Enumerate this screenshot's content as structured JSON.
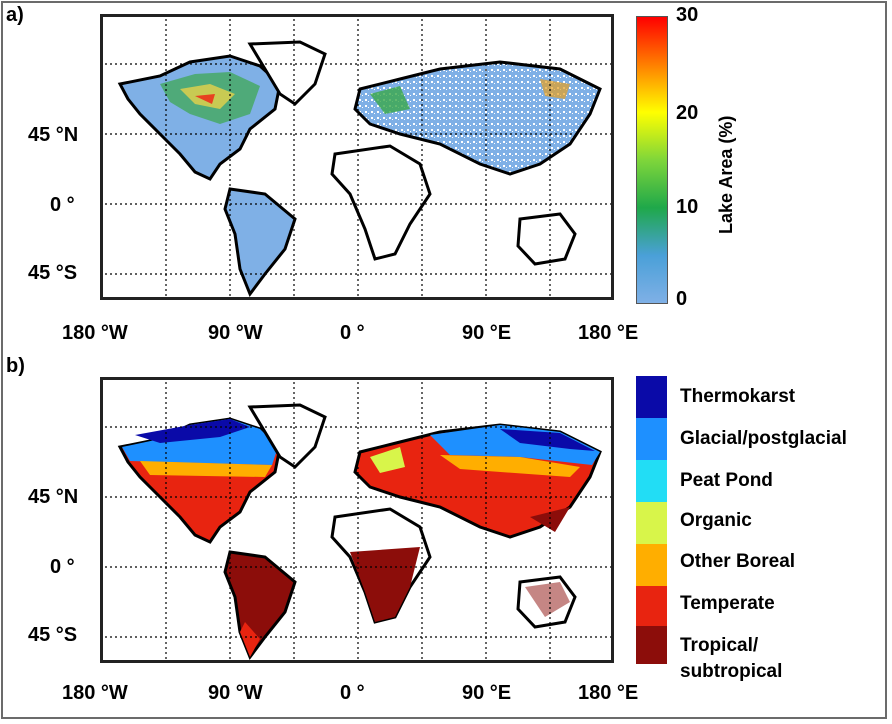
{
  "panels": [
    {
      "label": "a)",
      "lat_ticks": [
        "45 °N",
        "0 °",
        "45 °S"
      ],
      "lon_ticks": [
        "180 °W",
        "90 °W",
        "0 °",
        "90 °E",
        "180 °E"
      ],
      "colorbar": {
        "title": "Lake Area (%)",
        "ticks": [
          "30",
          "20",
          "10",
          "0"
        ],
        "range": [
          0,
          30
        ],
        "colors": [
          "#ff0000",
          "#ff7f00",
          "#ffff00",
          "#7fd63a",
          "#1fa84a",
          "#4aa0d8",
          "#7fb0e6"
        ]
      }
    },
    {
      "label": "b)",
      "lat_ticks": [
        "45 °N",
        "0 °",
        "45 °S"
      ],
      "lon_ticks": [
        "180 °W",
        "90 °W",
        "0 °",
        "90 °E",
        "180 °E"
      ],
      "legend": [
        {
          "label": "Thermokarst",
          "color": "#0a0aa8"
        },
        {
          "label": "Glacial/postglacial",
          "color": "#1e90ff"
        },
        {
          "label": "Peat Pond",
          "color": "#22ddf5"
        },
        {
          "label": "Organic",
          "color": "#d8f54a"
        },
        {
          "label": "Other Boreal",
          "color": "#ffae00"
        },
        {
          "label": "Temperate",
          "color": "#e82410"
        },
        {
          "label": "Tropical/",
          "label2": "subtropical",
          "color": "#8c0d0a"
        }
      ]
    }
  ]
}
